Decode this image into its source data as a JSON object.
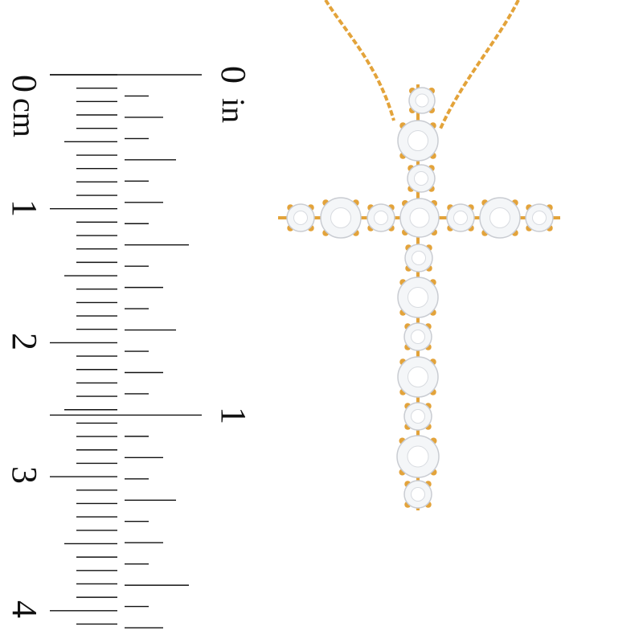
{
  "ruler": {
    "cm_labels": [
      "0",
      "1",
      "2",
      "3",
      "4"
    ],
    "cm_unit": "cm",
    "in_labels": [
      "0",
      "1"
    ],
    "in_unit": "in"
  },
  "product": {
    "metal_color": "#e3a33a",
    "stone_color": "#f4f6f8"
  }
}
